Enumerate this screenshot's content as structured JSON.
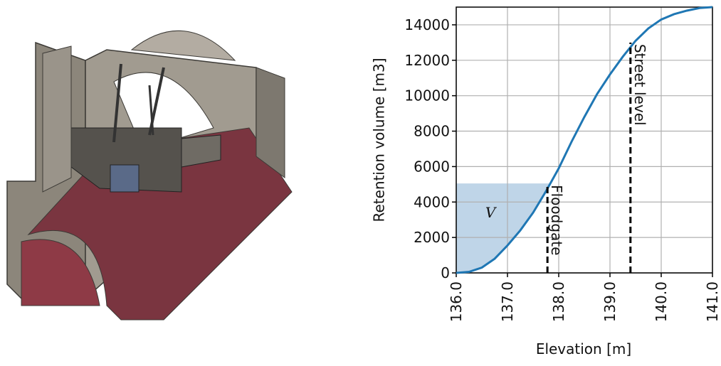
{
  "chart_data": {
    "type": "line",
    "xlabel": "Elevation [m]",
    "ylabel": "Retention volume [m3]",
    "x": [
      136,
      136.25,
      136.5,
      136.75,
      137,
      137.25,
      137.5,
      137.75,
      138,
      138.25,
      138.5,
      138.75,
      139,
      139.25,
      139.5,
      139.75,
      140,
      140.25,
      140.5,
      140.75,
      141
    ],
    "values": [
      0,
      60,
      300,
      800,
      1550,
      2400,
      3400,
      4600,
      5900,
      7400,
      8800,
      10100,
      11200,
      12200,
      13100,
      13800,
      14300,
      14600,
      14800,
      14950,
      15000
    ],
    "color": "#1f77b4",
    "xlim": [
      136,
      141
    ],
    "xticks": [
      {
        "value": 136,
        "label": "136.0"
      },
      {
        "value": 137,
        "label": "137.0"
      },
      {
        "value": 138,
        "label": "138.0"
      },
      {
        "value": 139,
        "label": "139.0"
      },
      {
        "value": 140,
        "label": "140.0"
      },
      {
        "value": 141,
        "label": "141.0"
      }
    ],
    "ylim": [
      0,
      15000
    ],
    "yticks": [
      0,
      2000,
      4000,
      6000,
      8000,
      10000,
      12000,
      14000
    ],
    "grid": true,
    "vlines": [
      {
        "label": "Floodgate",
        "x": 137.78,
        "ymax": 5050
      },
      {
        "label": "Street level",
        "x": 139.4,
        "ymax": 13000
      }
    ],
    "shade": {
      "label": "V",
      "ymax": 5050,
      "color": "#b8d0e6"
    }
  }
}
